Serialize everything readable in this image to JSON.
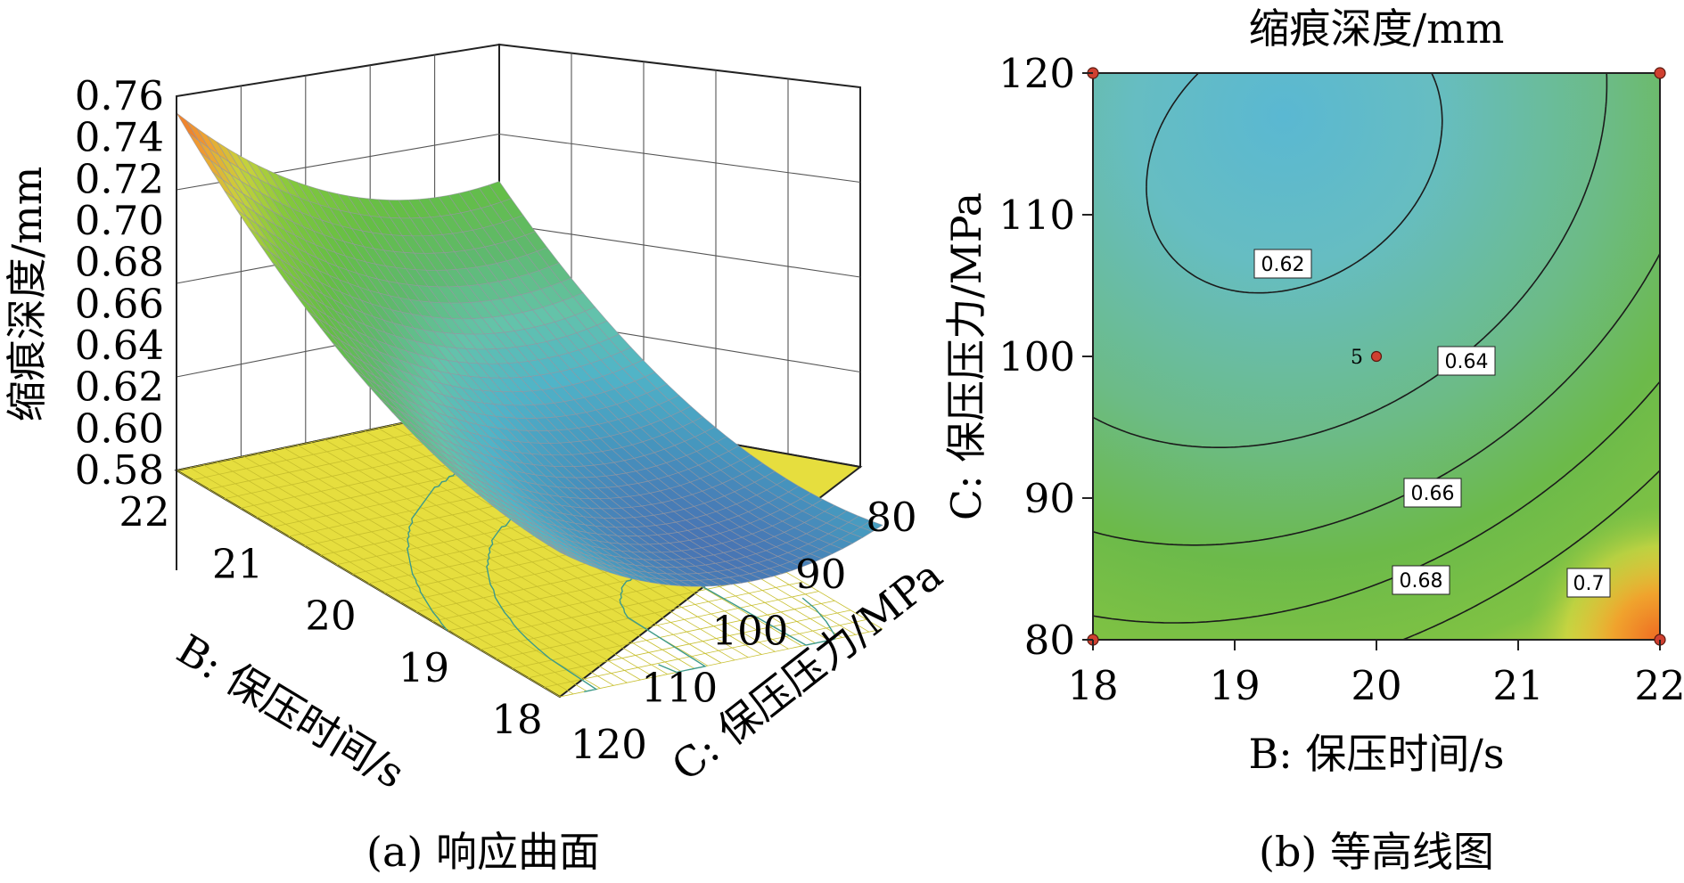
{
  "chart_data": [
    {
      "type": "surface",
      "caption": "(a) 响应曲面",
      "zlabel": "缩痕深度/mm",
      "xlabel": "B: 保压时间/s",
      "ylabel": "C: 保压压力/MPa",
      "x_ticks": [
        "22",
        "21",
        "20",
        "19",
        "18"
      ],
      "y_ticks": [
        "80",
        "90",
        "100",
        "110",
        "120"
      ],
      "z_ticks": [
        "0.76",
        "0.74",
        "0.72",
        "0.70",
        "0.68",
        "0.66",
        "0.64",
        "0.62",
        "0.60",
        "0.58"
      ],
      "xlim": [
        18,
        22
      ],
      "ylim": [
        80,
        120
      ],
      "zlim": [
        0.58,
        0.76
      ],
      "surface_corners": [
        {
          "B": 22,
          "C": 80,
          "depth": 0.757
        },
        {
          "B": 18,
          "C": 80,
          "depth": 0.685
        },
        {
          "B": 22,
          "C": 120,
          "depth": 0.655
        },
        {
          "B": 18,
          "C": 120,
          "depth": 0.628
        }
      ],
      "surface_min": {
        "B": 19.4,
        "C": 115,
        "depth": 0.598
      },
      "floor_color": "#e8e040"
    },
    {
      "type": "contour",
      "caption": "(b) 等高线图",
      "title": "缩痕深度/mm",
      "xlabel": "B: 保压时间/s",
      "ylabel": "C: 保压压力/MPa",
      "x_ticks": [
        "18",
        "19",
        "20",
        "21",
        "22"
      ],
      "y_ticks": [
        "120",
        "110",
        "100",
        "90",
        "80"
      ],
      "xlim": [
        18,
        22
      ],
      "ylim": [
        80,
        120
      ],
      "contours": [
        {
          "level": 0.62,
          "label": "0.62"
        },
        {
          "level": 0.64,
          "label": "0.64"
        },
        {
          "level": 0.66,
          "label": "0.66"
        },
        {
          "level": 0.68,
          "label": "0.68"
        },
        {
          "level": 0.7,
          "label": "0.7"
        }
      ],
      "center_point": {
        "B": 20,
        "C": 100,
        "label": "5"
      },
      "design_points": [
        {
          "B": 18,
          "C": 120
        },
        {
          "B": 22,
          "C": 120
        },
        {
          "B": 18,
          "C": 80
        },
        {
          "B": 22,
          "C": 80
        }
      ],
      "colors": {
        "low": "#5ab6c8",
        "mid": "#6fbb4a",
        "high": "#f08a28",
        "marker": "#d04030"
      }
    }
  ]
}
